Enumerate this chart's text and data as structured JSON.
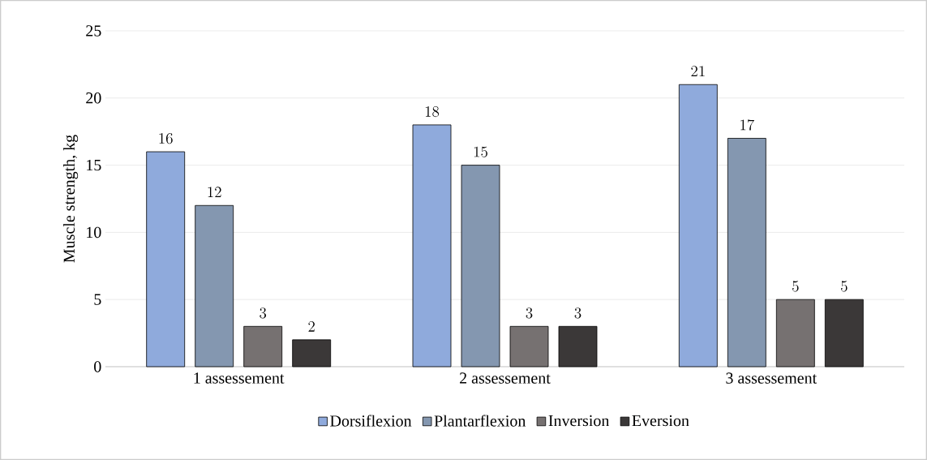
{
  "chart_data": {
    "type": "bar",
    "ylabel": "Muscle strength, kg",
    "categories": [
      "1 assessement",
      "2 assessement",
      "3 assessement"
    ],
    "series": [
      {
        "name": "Dorsiflexion",
        "color": "#8faadc",
        "values": [
          16,
          18,
          21
        ]
      },
      {
        "name": "Plantarflexion",
        "color": "#8497b0",
        "values": [
          12,
          15,
          17
        ]
      },
      {
        "name": "Inversion",
        "color": "#767171",
        "values": [
          3,
          3,
          5
        ]
      },
      {
        "name": "Eversion",
        "color": "#3b3838",
        "values": [
          2,
          3,
          5
        ]
      }
    ],
    "ylim": [
      0,
      25
    ],
    "yticks": [
      0,
      5,
      10,
      15,
      20,
      25
    ],
    "grid": "y",
    "legend": "bottom",
    "data_labels": true
  }
}
